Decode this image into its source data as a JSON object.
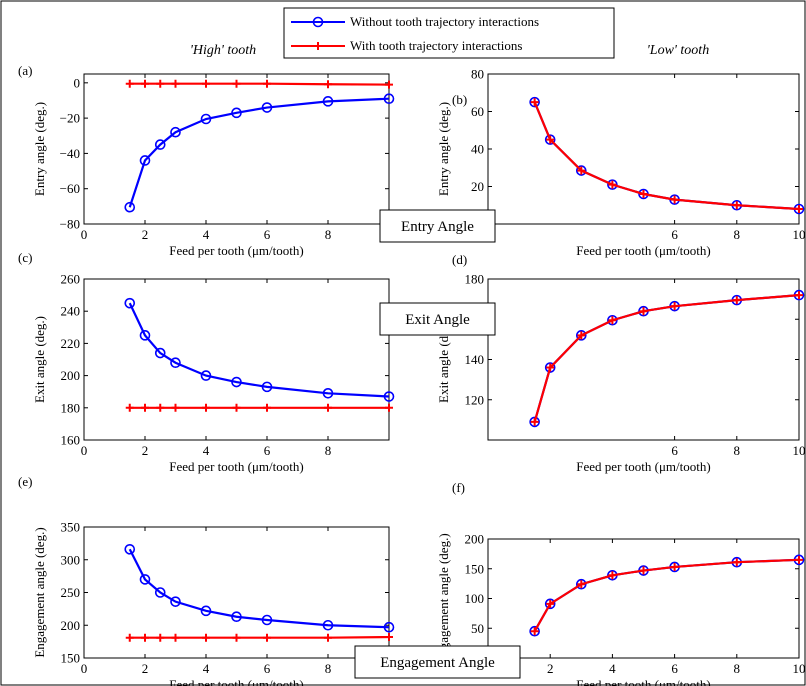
{
  "figure": {
    "title_left": "'High' tooth",
    "title_right": "'Low' tooth",
    "section_labels": [
      "Entry Angle",
      "Exit Angle",
      "Engagement Angle"
    ],
    "legend": [
      "Without tooth trajectory interactions",
      "With tooth trajectory interactions"
    ],
    "colors": {
      "without": "#0000ff",
      "with": "#ff0000"
    }
  },
  "chart_data": [
    {
      "type": "line",
      "panel": "(a)",
      "xlabel": "Feed per tooth (μm/tooth)",
      "ylabel": "Entry angle (deg.)",
      "xlim": [
        0,
        10
      ],
      "ylim": [
        -80,
        5
      ],
      "xticks": [
        0,
        2,
        4,
        6,
        8
      ],
      "yticks": [
        -80,
        -60,
        -40,
        -20,
        0
      ],
      "x": [
        1.5,
        2,
        2.5,
        3,
        4,
        5,
        6,
        8,
        10
      ],
      "series": [
        {
          "name": "Without tooth trajectory interactions",
          "values": [
            -70.5,
            -44,
            -35,
            -28,
            -20.5,
            -17,
            -14,
            -10.5,
            -9
          ]
        },
        {
          "name": "With tooth trajectory interactions",
          "values": [
            -0.5,
            -0.5,
            -0.5,
            -0.5,
            -0.5,
            -0.5,
            -0.5,
            -0.8,
            -1
          ]
        }
      ]
    },
    {
      "type": "line",
      "panel": "(b)",
      "xlabel": "Feed per tooth (μm/tooth)",
      "ylabel": "Entry angle (deg.)",
      "xlim": [
        0,
        10
      ],
      "ylim": [
        0,
        80
      ],
      "xticks": [
        6,
        8,
        10
      ],
      "yticks": [
        20,
        40,
        60,
        80
      ],
      "x": [
        1.5,
        2,
        3,
        4,
        5,
        6,
        8,
        10
      ],
      "series": [
        {
          "name": "Without tooth trajectory interactions",
          "values": [
            65,
            45,
            28.5,
            21,
            16,
            13,
            10,
            8
          ]
        },
        {
          "name": "With tooth trajectory interactions",
          "values": [
            65,
            45,
            28.5,
            21,
            16,
            13,
            10,
            8
          ]
        }
      ]
    },
    {
      "type": "line",
      "panel": "(c)",
      "xlabel": "Feed per tooth (μm/tooth)",
      "ylabel": "Exit angle (deg.)",
      "xlim": [
        0,
        10
      ],
      "ylim": [
        160,
        260
      ],
      "xticks": [
        0,
        2,
        4,
        6,
        8
      ],
      "yticks": [
        160,
        180,
        200,
        220,
        240,
        260
      ],
      "x": [
        1.5,
        2,
        2.5,
        3,
        4,
        5,
        6,
        8,
        10
      ],
      "series": [
        {
          "name": "Without tooth trajectory interactions",
          "values": [
            245,
            225,
            214,
            208,
            200,
            196,
            193,
            189,
            187
          ]
        },
        {
          "name": "With tooth trajectory interactions",
          "values": [
            180,
            180,
            180,
            180,
            180,
            180,
            180,
            180,
            180
          ]
        }
      ]
    },
    {
      "type": "line",
      "panel": "(d)",
      "xlabel": "Feed per tooth (μm/tooth)",
      "ylabel": "Exit angle (deg.)",
      "xlim": [
        0,
        10
      ],
      "ylim": [
        100,
        180
      ],
      "xticks": [
        6,
        8,
        10
      ],
      "yticks": [
        120,
        140,
        160,
        180
      ],
      "x": [
        1.5,
        2,
        3,
        4,
        5,
        6,
        8,
        10
      ],
      "series": [
        {
          "name": "Without tooth trajectory interactions",
          "values": [
            109,
            136,
            152,
            159.5,
            164,
            166.5,
            169.5,
            172
          ]
        },
        {
          "name": "With tooth trajectory interactions",
          "values": [
            109,
            136,
            152,
            159.5,
            164,
            166.5,
            169.5,
            172
          ]
        }
      ]
    },
    {
      "type": "line",
      "panel": "(e)",
      "xlabel": "Feed per tooth (μm/tooth)",
      "ylabel": "Engagement angle (deg.)",
      "xlim": [
        0,
        10
      ],
      "ylim": [
        150,
        350
      ],
      "xticks": [
        0,
        2,
        4,
        6,
        8,
        10
      ],
      "yticks": [
        150,
        200,
        250,
        300,
        350
      ],
      "x": [
        1.5,
        2,
        2.5,
        3,
        4,
        5,
        6,
        8,
        10
      ],
      "series": [
        {
          "name": "Without tooth trajectory interactions",
          "values": [
            316,
            270,
            250,
            236,
            222,
            213,
            208,
            200,
            197
          ]
        },
        {
          "name": "With tooth trajectory interactions",
          "values": [
            181,
            181,
            181,
            181,
            181,
            181,
            181,
            181,
            182
          ]
        }
      ]
    },
    {
      "type": "line",
      "panel": "(f)",
      "xlabel": "Feed per tooth (μm/tooth)",
      "ylabel": "Engagement angle (deg.)",
      "xlim": [
        0,
        10
      ],
      "ylim": [
        0,
        200
      ],
      "xticks": [
        0,
        2,
        4,
        6,
        8,
        10
      ],
      "yticks": [
        0,
        50,
        100,
        150,
        200
      ],
      "x": [
        1.5,
        2,
        3,
        4,
        5,
        6,
        8,
        10
      ],
      "series": [
        {
          "name": "Without tooth trajectory interactions",
          "values": [
            45,
            91,
            124,
            139,
            147,
            153,
            161,
            165
          ]
        },
        {
          "name": "With tooth trajectory interactions",
          "values": [
            45,
            91,
            124,
            139,
            147,
            153,
            161,
            165
          ]
        }
      ]
    }
  ]
}
